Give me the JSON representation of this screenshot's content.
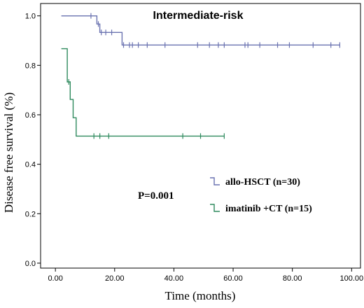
{
  "chart_data": {
    "type": "line",
    "subtype": "kaplan-meier",
    "title": "Intermediate-risk",
    "xlabel": "Time (months)",
    "ylabel": "Disease free survival (%)",
    "xlim": [
      -5,
      103
    ],
    "ylim": [
      -0.02,
      1.05
    ],
    "xticks": [
      0,
      20,
      40,
      60,
      80,
      100
    ],
    "xtick_labels": [
      "0.00",
      "20.00",
      "40.00",
      "60.00",
      "80.00",
      "100.00"
    ],
    "yticks": [
      0,
      0.2,
      0.4,
      0.6,
      0.8,
      1.0
    ],
    "ytick_labels": [
      "0.0",
      "0.2",
      "0.4",
      "0.6",
      "0.8",
      "1.0"
    ],
    "grid": false,
    "annotation": "P=0.001",
    "legend_position": "lower-right",
    "series": [
      {
        "name": "allo-HSCT (n=30)",
        "color": "#6a72b0",
        "steps": [
          [
            2,
            1.0
          ],
          [
            14,
            1.0
          ],
          [
            14,
            0.967
          ],
          [
            15,
            0.967
          ],
          [
            15,
            0.933
          ],
          [
            22.5,
            0.933
          ],
          [
            22.5,
            0.882
          ],
          [
            96,
            0.882
          ]
        ],
        "censored": [
          [
            12,
            1.0
          ],
          [
            14.5,
            0.967
          ],
          [
            15.5,
            0.933
          ],
          [
            17,
            0.933
          ],
          [
            19,
            0.933
          ],
          [
            23,
            0.882
          ],
          [
            25,
            0.882
          ],
          [
            26,
            0.882
          ],
          [
            28,
            0.882
          ],
          [
            31,
            0.882
          ],
          [
            37,
            0.882
          ],
          [
            48,
            0.882
          ],
          [
            52,
            0.882
          ],
          [
            55,
            0.882
          ],
          [
            57,
            0.882
          ],
          [
            64,
            0.882
          ],
          [
            65,
            0.882
          ],
          [
            69,
            0.882
          ],
          [
            75,
            0.882
          ],
          [
            79,
            0.882
          ],
          [
            87,
            0.882
          ],
          [
            93,
            0.882
          ],
          [
            96,
            0.882
          ]
        ]
      },
      {
        "name": "imatinib +CT (n=15)",
        "color": "#2f8a5e",
        "steps": [
          [
            2,
            0.867
          ],
          [
            4,
            0.867
          ],
          [
            4,
            0.733
          ],
          [
            5,
            0.733
          ],
          [
            5,
            0.662
          ],
          [
            6,
            0.662
          ],
          [
            6,
            0.588
          ],
          [
            7,
            0.588
          ],
          [
            7,
            0.514
          ],
          [
            57,
            0.514
          ]
        ],
        "censored": [
          [
            4.5,
            0.733
          ],
          [
            13,
            0.514
          ],
          [
            15,
            0.514
          ],
          [
            18,
            0.514
          ],
          [
            43,
            0.514
          ],
          [
            49,
            0.514
          ],
          [
            57,
            0.514
          ]
        ]
      }
    ]
  }
}
